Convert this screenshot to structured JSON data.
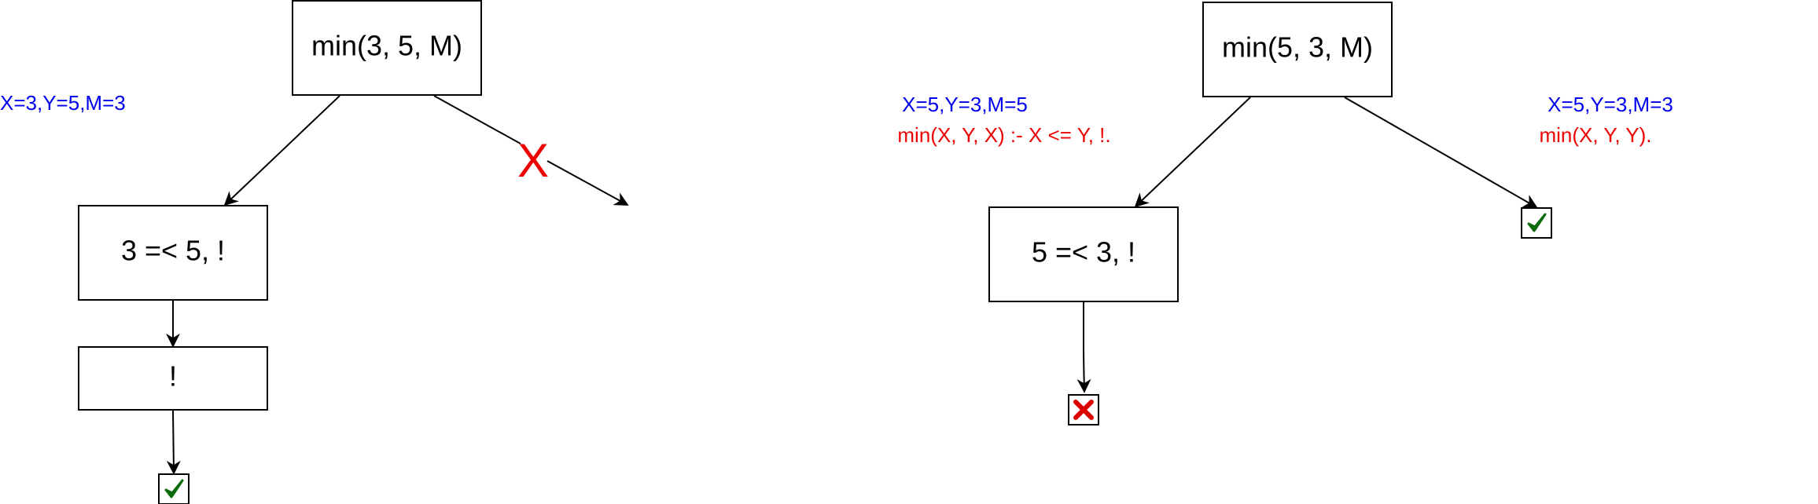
{
  "colors": {
    "binding": "#0000ee",
    "clause": "#ee0000",
    "check": "#0a6b0a",
    "fail": "#dd0000"
  },
  "left_tree": {
    "root": "min(3, 5, M)",
    "binding_left": "X=3,Y=5,M=3",
    "cut_mark": "X",
    "child1": "3 =< 5, !",
    "child2": "!"
  },
  "right_tree": {
    "root": "min(5, 3, M)",
    "binding_left": "X=5,Y=3,M=5",
    "clause_left": "min(X, Y, X) :- X <= Y, !.",
    "binding_right": "X=5,Y=3,M=3",
    "clause_right": "min(X, Y, Y).",
    "child1": "5 =< 3, !"
  },
  "icons": {
    "success": "check-icon",
    "failure": "cross-icon"
  }
}
